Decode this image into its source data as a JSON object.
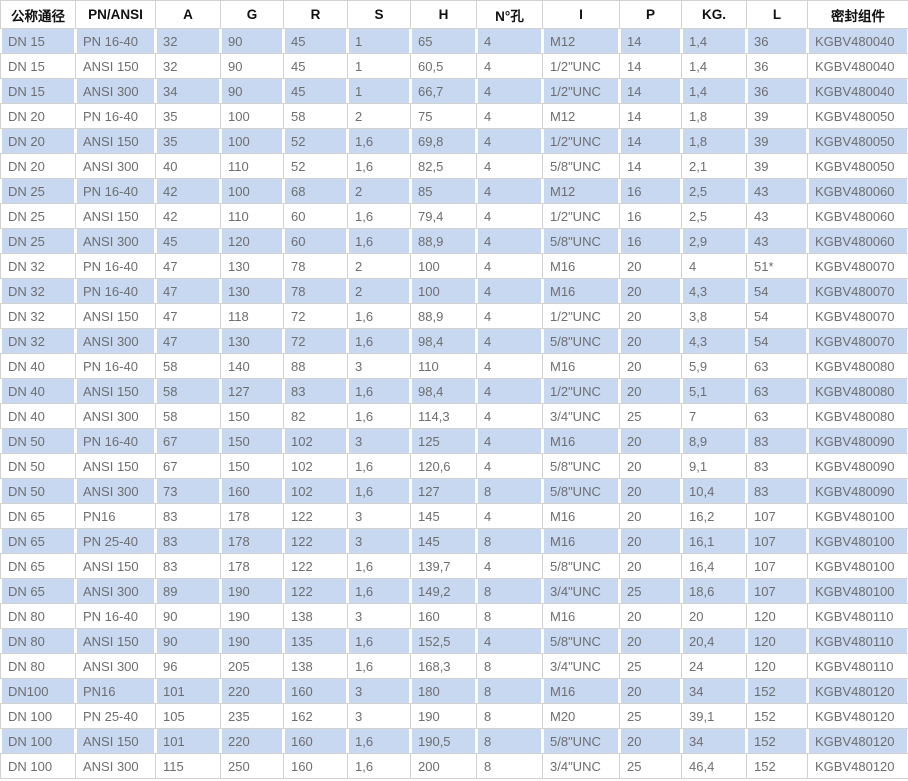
{
  "table": {
    "columns": [
      "公称通径",
      "PN/ANSI",
      "A",
      "G",
      "R",
      "S",
      "H",
      "N°孔",
      "I",
      "P",
      "KG.",
      "L",
      "密封组件"
    ],
    "rows": [
      [
        "DN 15",
        "PN 16-40",
        "32",
        "90",
        "45",
        "1",
        "65",
        "4",
        "M12",
        "14",
        "1,4",
        "36",
        "KGBV480040"
      ],
      [
        "DN 15",
        "ANSI 150",
        "32",
        "90",
        "45",
        "1",
        "60,5",
        "4",
        "1/2\"UNC",
        "14",
        "1,4",
        "36",
        "KGBV480040"
      ],
      [
        "DN 15",
        "ANSI 300",
        "34",
        "90",
        "45",
        "1",
        "66,7",
        "4",
        "1/2\"UNC",
        "14",
        "1,4",
        "36",
        "KGBV480040"
      ],
      [
        "DN 20",
        "PN 16-40",
        "35",
        "100",
        "58",
        "2",
        "75",
        "4",
        "M12",
        "14",
        "1,8",
        "39",
        "KGBV480050"
      ],
      [
        "DN 20",
        "ANSI 150",
        "35",
        "100",
        "52",
        "1,6",
        "69,8",
        "4",
        "1/2\"UNC",
        "14",
        "1,8",
        "39",
        "KGBV480050"
      ],
      [
        "DN 20",
        "ANSI 300",
        "40",
        "110",
        "52",
        "1,6",
        "82,5",
        "4",
        "5/8\"UNC",
        "14",
        "2,1",
        "39",
        "KGBV480050"
      ],
      [
        "DN 25",
        "PN 16-40",
        "42",
        "100",
        "68",
        "2",
        "85",
        "4",
        "M12",
        "16",
        "2,5",
        "43",
        "KGBV480060"
      ],
      [
        "DN 25",
        "ANSI 150",
        "42",
        "110",
        "60",
        "1,6",
        "79,4",
        "4",
        "1/2\"UNC",
        "16",
        "2,5",
        "43",
        "KGBV480060"
      ],
      [
        "DN 25",
        "ANSI 300",
        "45",
        "120",
        "60",
        "1,6",
        "88,9",
        "4",
        "5/8\"UNC",
        "16",
        "2,9",
        "43",
        "KGBV480060"
      ],
      [
        "DN 32",
        "PN 16-40",
        "47",
        "130",
        "78",
        "2",
        "100",
        "4",
        "M16",
        "20",
        "4",
        "51*",
        "KGBV480070"
      ],
      [
        "DN 32",
        "PN 16-40",
        "47",
        "130",
        "78",
        "2",
        "100",
        "4",
        "M16",
        "20",
        "4,3",
        "54",
        "KGBV480070"
      ],
      [
        "DN 32",
        "ANSI 150",
        "47",
        "118",
        "72",
        "1,6",
        "88,9",
        "4",
        "1/2\"UNC",
        "20",
        "3,8",
        "54",
        "KGBV480070"
      ],
      [
        "DN 32",
        "ANSI 300",
        "47",
        "130",
        "72",
        "1,6",
        "98,4",
        "4",
        "5/8\"UNC",
        "20",
        "4,3",
        "54",
        "KGBV480070"
      ],
      [
        "DN 40",
        "PN 16-40",
        "58",
        "140",
        "88",
        "3",
        "110",
        "4",
        "M16",
        "20",
        "5,9",
        "63",
        "KGBV480080"
      ],
      [
        "DN 40",
        "ANSI 150",
        "58",
        "127",
        "83",
        "1,6",
        "98,4",
        "4",
        "1/2\"UNC",
        "20",
        "5,1",
        "63",
        "KGBV480080"
      ],
      [
        "DN 40",
        "ANSI 300",
        "58",
        "150",
        "82",
        "1,6",
        "114,3",
        "4",
        "3/4\"UNC",
        "25",
        "7",
        "63",
        "KGBV480080"
      ],
      [
        "DN 50",
        "PN 16-40",
        "67",
        "150",
        "102",
        "3",
        "125",
        "4",
        "M16",
        "20",
        "8,9",
        "83",
        "KGBV480090"
      ],
      [
        "DN 50",
        "ANSI 150",
        "67",
        "150",
        "102",
        "1,6",
        "120,6",
        "4",
        "5/8\"UNC",
        "20",
        "9,1",
        "83",
        "KGBV480090"
      ],
      [
        "DN 50",
        "ANSI 300",
        "73",
        "160",
        "102",
        "1,6",
        "127",
        "8",
        "5/8\"UNC",
        "20",
        "10,4",
        "83",
        "KGBV480090"
      ],
      [
        "DN 65",
        "PN16",
        "83",
        "178",
        "122",
        "3",
        "145",
        "4",
        "M16",
        "20",
        "16,2",
        "107",
        "KGBV480100"
      ],
      [
        "DN 65",
        "PN 25-40",
        "83",
        "178",
        "122",
        "3",
        "145",
        "8",
        "M16",
        "20",
        "16,1",
        "107",
        "KGBV480100"
      ],
      [
        "DN 65",
        "ANSI 150",
        "83",
        "178",
        "122",
        "1,6",
        "139,7",
        "4",
        "5/8\"UNC",
        "20",
        "16,4",
        "107",
        "KGBV480100"
      ],
      [
        "DN 65",
        "ANSI 300",
        "89",
        "190",
        "122",
        "1,6",
        "149,2",
        "8",
        "3/4\"UNC",
        "25",
        "18,6",
        "107",
        "KGBV480100"
      ],
      [
        "DN 80",
        "PN 16-40",
        "90",
        "190",
        "138",
        "3",
        "160",
        "8",
        "M16",
        "20",
        "20",
        "120",
        "KGBV480110"
      ],
      [
        "DN 80",
        "ANSI 150",
        "90",
        "190",
        "135",
        "1,6",
        "152,5",
        "4",
        "5/8\"UNC",
        "20",
        "20,4",
        "120",
        "KGBV480110"
      ],
      [
        "DN 80",
        "ANSI 300",
        "96",
        "205",
        "138",
        "1,6",
        "168,3",
        "8",
        "3/4\"UNC",
        "25",
        "24",
        "120",
        "KGBV480110"
      ],
      [
        "DN100",
        "PN16",
        "101",
        "220",
        "160",
        "3",
        "180",
        "8",
        "M16",
        "20",
        "34",
        "152",
        "KGBV480120"
      ],
      [
        "DN 100",
        "PN 25-40",
        "105",
        "235",
        "162",
        "3",
        "190",
        "8",
        "M20",
        "25",
        "39,1",
        "152",
        "KGBV480120"
      ],
      [
        "DN 100",
        "ANSI 150",
        "101",
        "220",
        "160",
        "1,6",
        "190,5",
        "8",
        "5/8\"UNC",
        "20",
        "34",
        "152",
        "KGBV480120"
      ],
      [
        "DN 100",
        "ANSI 300",
        "115",
        "250",
        "160",
        "1,6",
        "200",
        "8",
        "3/4\"UNC",
        "25",
        "46,4",
        "152",
        "KGBV480120"
      ]
    ]
  },
  "colors": {
    "stripe": "#c8d8f0",
    "border": "#d2d2d2",
    "cell_text": "#6e6e70",
    "header_text": "#111111"
  }
}
